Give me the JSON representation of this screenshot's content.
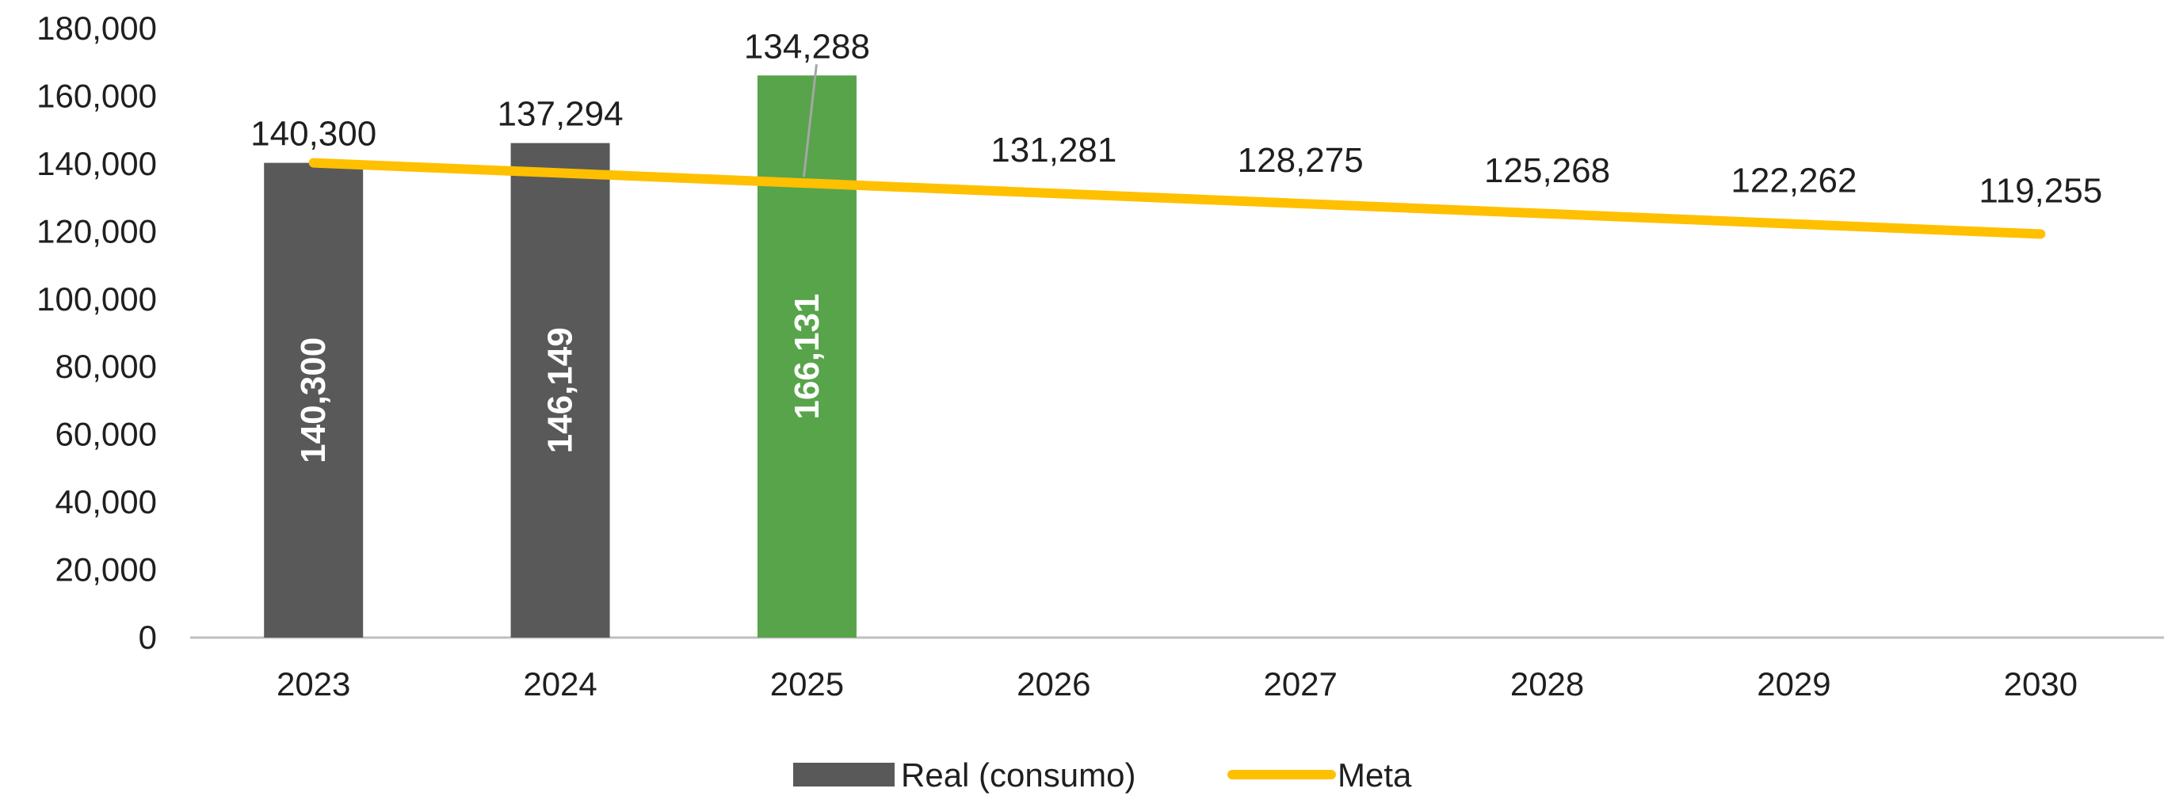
{
  "chart_data": {
    "type": "bar",
    "title": "",
    "xlabel": "",
    "ylabel": "",
    "ylim": [
      0,
      180000
    ],
    "y_ticks": [
      "0",
      "20,000",
      "40,000",
      "60,000",
      "80,000",
      "100,000",
      "120,000",
      "140,000",
      "160,000",
      "180,000"
    ],
    "grid": false,
    "legend_position": "bottom",
    "categories": [
      "2023",
      "2024",
      "2025",
      "2026",
      "2027",
      "2028",
      "2029",
      "2030"
    ],
    "series": [
      {
        "name": "Real (consumo)",
        "kind": "bar",
        "color": "#595959",
        "highlight_color": "#57a44a",
        "highlight_category": "2025",
        "values": [
          140300,
          146149,
          166131,
          null,
          null,
          null,
          null,
          null
        ],
        "labels": [
          "140,300",
          "146,149",
          "166,131",
          "",
          "",
          "",
          "",
          ""
        ]
      },
      {
        "name": "Meta",
        "kind": "line",
        "color": "#ffc000",
        "values": [
          140300,
          137294,
          134288,
          131281,
          128275,
          125268,
          122262,
          119255
        ],
        "labels": [
          "140,300",
          "137,294",
          "134,288",
          "131,281",
          "128,275",
          "125,268",
          "122,262",
          "119,255"
        ]
      }
    ]
  }
}
